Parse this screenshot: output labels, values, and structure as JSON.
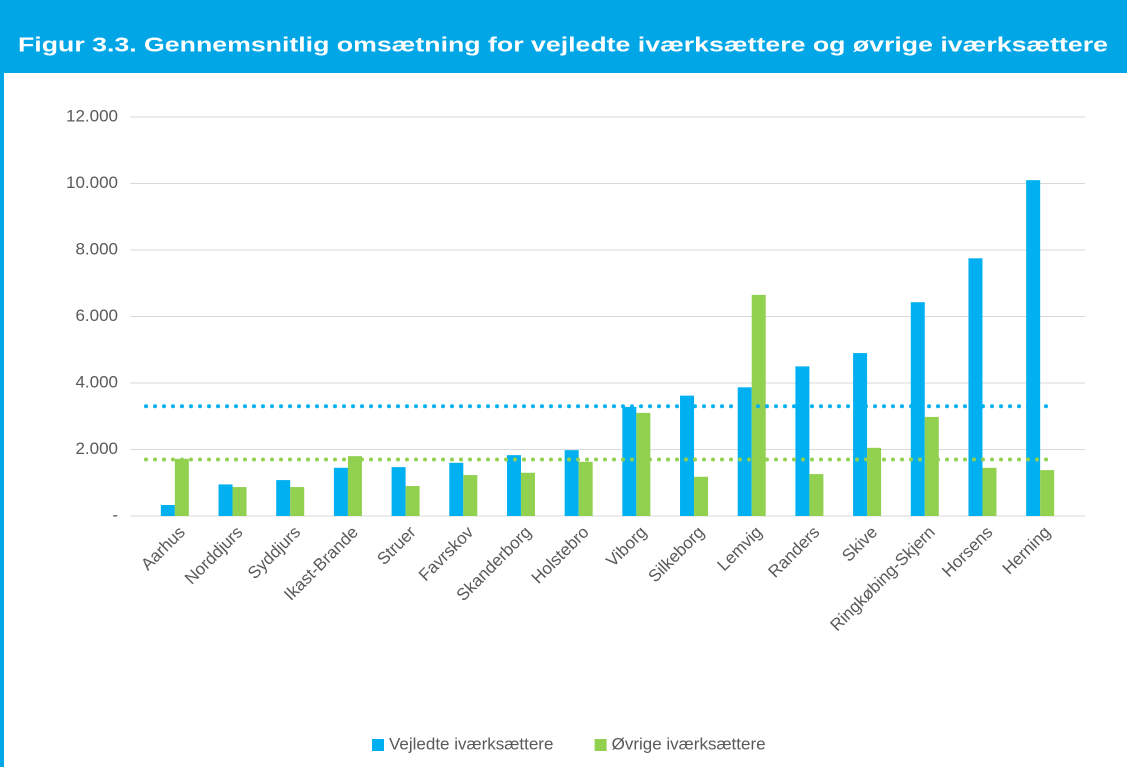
{
  "chart_data": {
    "type": "bar",
    "title": "Figur 3.3. Gennemsnitlig omsætning for vejledte iværksættere og øvrige iværksættere",
    "categories": [
      "Aarhus",
      "Norddjurs",
      "Syddjurs",
      "Ikast-Brande",
      "Struer",
      "Favrskov",
      "Skanderborg",
      "Holstebro",
      "Viborg",
      "Silkeborg",
      "Lemvig",
      "Randers",
      "Skive",
      "Ringkøbing-Skjern",
      "Horsens",
      "Herning"
    ],
    "series": [
      {
        "name": "Vejledte iværksættere",
        "color": "#00b0f0",
        "values": [
          330,
          950,
          1080,
          1450,
          1470,
          1600,
          1830,
          1980,
          3280,
          3620,
          3870,
          4500,
          4900,
          6430,
          7750,
          10100
        ]
      },
      {
        "name": "Øvrige iværksættere",
        "color": "#92d050",
        "values": [
          1720,
          870,
          870,
          1800,
          900,
          1230,
          1300,
          1630,
          3100,
          1180,
          6650,
          1260,
          2050,
          2980,
          1450,
          1380
        ]
      }
    ],
    "reference_lines": [
      {
        "value": 3300,
        "color": "#00b0f0",
        "style": "dotted"
      },
      {
        "value": 1700,
        "color": "#92d050",
        "style": "dotted"
      }
    ],
    "ylim": [
      0,
      12000
    ],
    "yticks": [
      {
        "value": 0,
        "label": "-"
      },
      {
        "value": 2000,
        "label": "2.000"
      },
      {
        "value": 4000,
        "label": "4.000"
      },
      {
        "value": 6000,
        "label": "6.000"
      },
      {
        "value": 8000,
        "label": "8.000"
      },
      {
        "value": 10000,
        "label": "10.000"
      },
      {
        "value": 12000,
        "label": "12.000"
      }
    ],
    "grid": true,
    "legend": "bottom"
  }
}
